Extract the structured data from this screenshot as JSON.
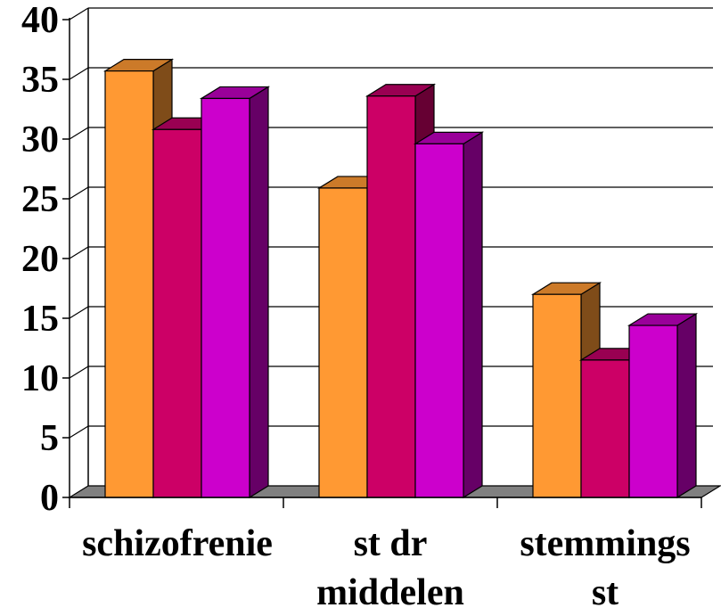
{
  "chart_data": {
    "type": "bar",
    "title": "",
    "xlabel": "",
    "ylabel": "",
    "categories": [
      [
        "schizofrenie"
      ],
      [
        "st dr",
        "middelen"
      ],
      [
        "stemmings",
        "st"
      ]
    ],
    "series": [
      {
        "values": [
          35.7,
          25.9,
          17.0
        ]
      },
      {
        "values": [
          30.8,
          33.6,
          11.5
        ]
      },
      {
        "values": [
          33.4,
          29.6,
          14.4
        ]
      }
    ],
    "ylim": [
      0,
      40
    ],
    "yticks": [
      0,
      5,
      10,
      15,
      20,
      25,
      30,
      35,
      40
    ],
    "grid": true,
    "legend": "none",
    "three_d": true,
    "colors": {
      "series_front": [
        "#FF9933",
        "#CC0066",
        "#CC00CC"
      ],
      "series_side": [
        "#7F4C19",
        "#660033",
        "#660066"
      ],
      "series_top": [
        "#CC7A29",
        "#990052",
        "#990099"
      ],
      "floor": "#808080",
      "gridline": "#000000"
    }
  }
}
